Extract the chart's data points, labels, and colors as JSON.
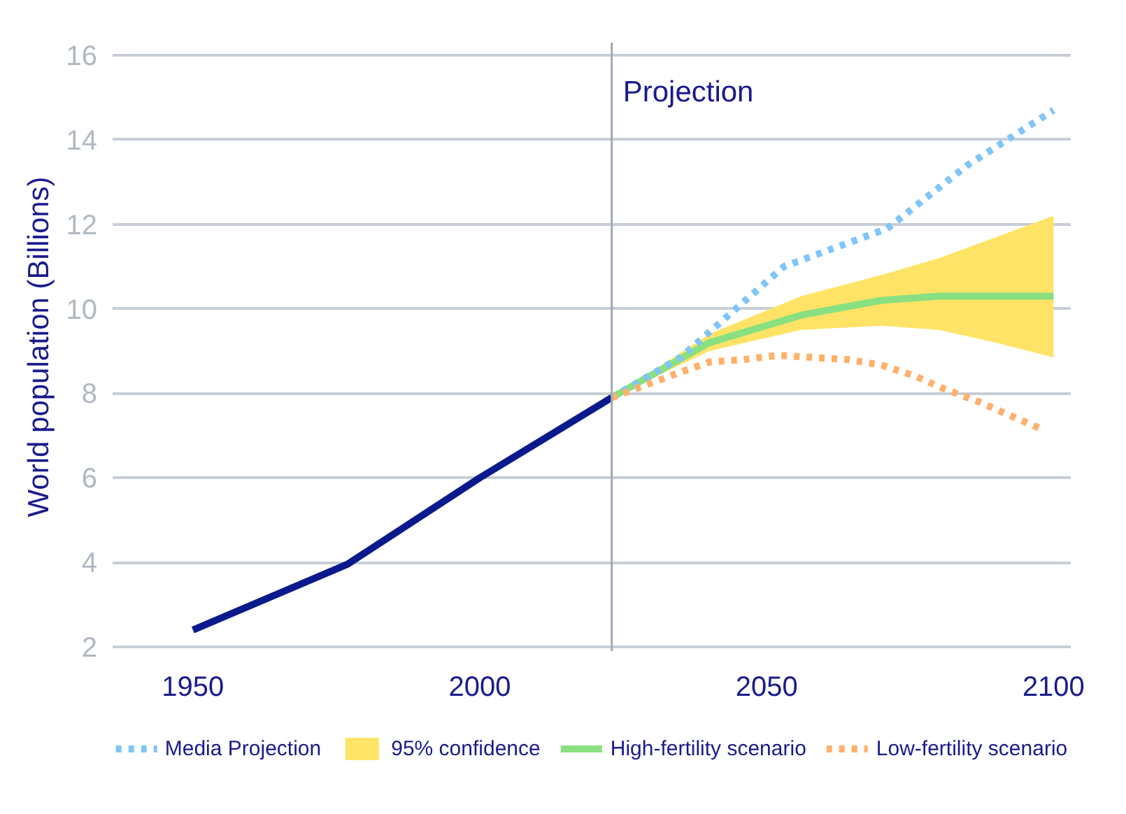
{
  "chart_data": {
    "type": "line",
    "ylabel": "World population (Billions)",
    "xlim": [
      1936,
      2103
    ],
    "ylim": [
      1.9,
      16.3
    ],
    "xticks": [
      1950,
      2000,
      2050,
      2100
    ],
    "yticks": [
      2,
      4,
      6,
      8,
      10,
      12,
      14,
      16
    ],
    "grid": "y",
    "legend": "bottom",
    "ref_lines": [
      {
        "axis": "x",
        "value": 2023,
        "label": "Projection",
        "color": "#a0a8b4"
      }
    ],
    "series": [
      {
        "color": "#0a1a8c",
        "x": [
          1950,
          1977,
          2000,
          2023
        ],
        "values": [
          2.4,
          3.96,
          6.0,
          7.9
        ]
      },
      {
        "name": "Media Projection",
        "color": "#80c4f8",
        "line_style": "dotted",
        "x": [
          2023,
          2035,
          2053,
          2071,
          2085,
          2100
        ],
        "values": [
          7.9,
          8.85,
          11.0,
          11.9,
          13.4,
          14.7
        ]
      },
      {
        "name": "95% confidence",
        "type": "area",
        "color": "#ffe366"
      },
      {
        "name": "High-fertility scenario",
        "color": "#88e080",
        "x": [
          2023,
          2040,
          2056,
          2070,
          2080,
          2090,
          2100
        ],
        "values": [
          7.9,
          9.2,
          9.85,
          10.2,
          10.3,
          10.3,
          10.3
        ],
        "lower": [
          7.9,
          9.0,
          9.5,
          9.6,
          9.5,
          9.2,
          8.85
        ],
        "upper": [
          7.9,
          9.4,
          10.3,
          10.8,
          11.2,
          11.7,
          12.2
        ]
      },
      {
        "name": "Low-fertility scenario",
        "color": "#ffb06a",
        "line_style": "dotted",
        "x": [
          2023,
          2028,
          2035,
          2040,
          2046,
          2052,
          2058,
          2064,
          2070,
          2076,
          2081,
          2087,
          2092,
          2098
        ],
        "values": [
          7.9,
          8.15,
          8.5,
          8.74,
          8.8,
          8.9,
          8.85,
          8.8,
          8.67,
          8.4,
          8.1,
          7.8,
          7.5,
          7.15
        ]
      }
    ]
  }
}
